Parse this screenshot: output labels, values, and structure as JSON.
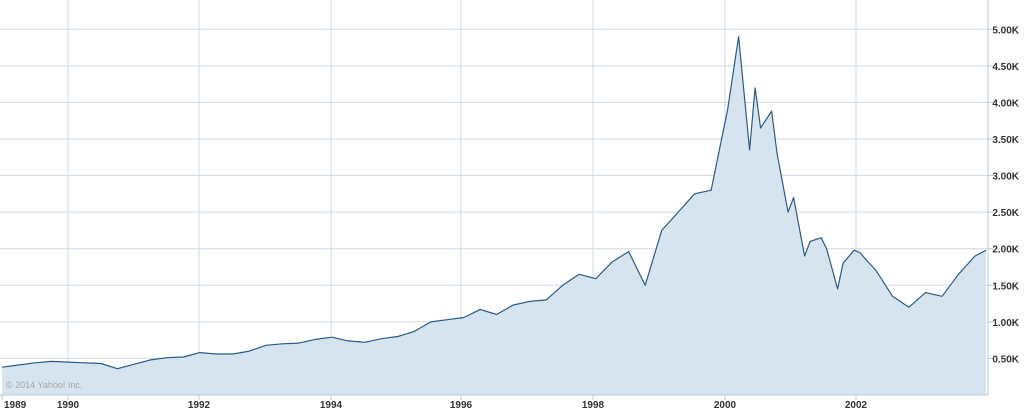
{
  "chart_data": {
    "type": "area",
    "credit": "© 2014 Yahoo! Inc.",
    "x_ticks": [
      "1989",
      "1990",
      "1992",
      "1994",
      "1996",
      "1998",
      "2000",
      "2002"
    ],
    "y_ticks": [
      "0.50K",
      "1.00K",
      "1.50K",
      "2.00K",
      "2.50K",
      "3.00K",
      "3.50K",
      "4.00K",
      "4.50K",
      "5.00K"
    ],
    "y_tick_values": [
      500,
      1000,
      1500,
      2000,
      2500,
      3000,
      3500,
      4000,
      4500,
      5000
    ],
    "xlim": [
      "1989-01",
      "2003-12"
    ],
    "ylim": [
      0,
      5400
    ],
    "grid": true,
    "colors": {
      "line": "#2c5a88",
      "fill": "#d6e4f0",
      "grid": "#cfd9e3"
    },
    "series": [
      {
        "x": [
          "1989-01",
          "1989-04",
          "1989-07",
          "1989-10",
          "1990-01",
          "1990-04",
          "1990-07",
          "1990-10",
          "1991-01",
          "1991-04",
          "1991-07",
          "1991-10",
          "1992-01",
          "1992-04",
          "1992-07",
          "1992-10",
          "1993-01",
          "1993-04",
          "1993-07",
          "1993-10",
          "1994-01",
          "1994-04",
          "1994-07",
          "1994-10",
          "1995-01",
          "1995-04",
          "1995-07",
          "1995-10",
          "1996-01",
          "1996-04",
          "1996-07",
          "1996-10",
          "1997-01",
          "1997-04",
          "1997-07",
          "1997-10",
          "1998-01",
          "1998-04",
          "1998-07",
          "1998-10",
          "1999-01",
          "1999-04",
          "1999-07",
          "1999-10",
          "2000-01",
          "2000-03",
          "2000-05",
          "2000-06",
          "2000-07",
          "2000-09",
          "2000-10",
          "2000-12",
          "2001-01",
          "2001-03",
          "2001-04",
          "2001-06",
          "2001-07",
          "2001-09",
          "2001-10",
          "2001-12",
          "2002-01",
          "2002-04",
          "2002-07",
          "2002-10",
          "2003-01",
          "2003-04",
          "2003-07",
          "2003-10",
          "2003-12"
        ],
        "values": [
          380,
          410,
          440,
          460,
          450,
          440,
          430,
          360,
          420,
          480,
          510,
          520,
          580,
          560,
          560,
          600,
          680,
          700,
          710,
          760,
          790,
          740,
          720,
          770,
          800,
          870,
          1000,
          1030,
          1060,
          1170,
          1100,
          1230,
          1280,
          1300,
          1500,
          1650,
          1590,
          1820,
          1960,
          1500,
          2250,
          2500,
          2750,
          2800,
          3900,
          4900,
          3350,
          4200,
          3650,
          3880,
          3300,
          2500,
          2700,
          1900,
          2100,
          2150,
          2000,
          1450,
          1800,
          1980,
          1950,
          1700,
          1350,
          1200,
          1400,
          1350,
          1650,
          1900,
          1980
        ]
      }
    ]
  }
}
